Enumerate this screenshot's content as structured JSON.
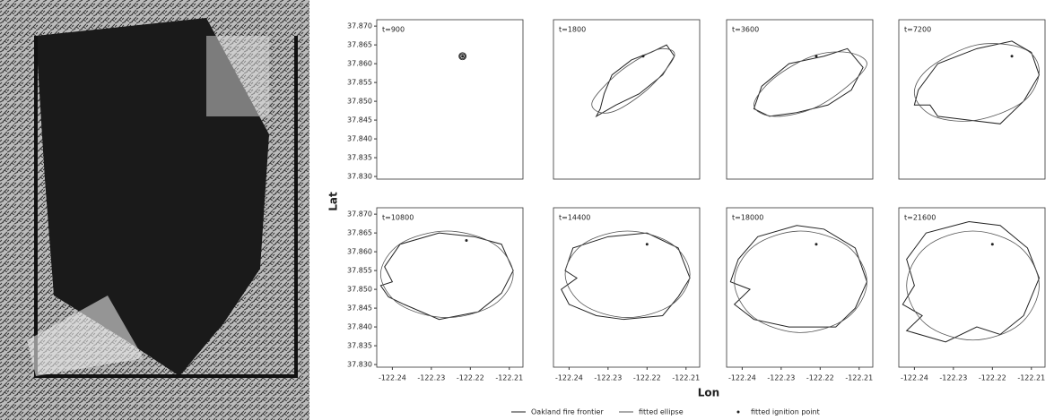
{
  "figure": {
    "xlabel": "Lon",
    "ylabel": "Lat"
  },
  "chart_data": [
    {
      "type": "line",
      "title": "t=900",
      "xlim": [
        -122.244,
        -122.2065
      ],
      "ylim": [
        37.8293,
        37.8717
      ],
      "yticks": [
        {
          "value": 37.87,
          "label": "37.870"
        },
        37.865,
        {
          "value": 37.86,
          "label": "37.860"
        },
        37.855,
        {
          "value": 37.85,
          "label": "37.850"
        },
        37.845,
        {
          "value": 37.84,
          "label": "37.840"
        },
        37.835,
        {
          "value": 37.83,
          "label": "37.830"
        }
      ],
      "series": [
        {
          "name": "Oakland fire frontier",
          "color": "#222222",
          "x": [
            -122.2213,
            -122.2217,
            -122.2223,
            -122.2227,
            -122.2224,
            -122.2217
          ],
          "y": [
            37.8621,
            37.8626,
            37.8626,
            37.8621,
            37.8614,
            37.8614
          ]
        },
        {
          "name": "fitted ellipse",
          "color": "#555555",
          "x": [
            -122.2212,
            -122.2214,
            -122.222,
            -122.2226,
            -122.2228,
            -122.2226,
            -122.222,
            -122.2214
          ],
          "y": [
            37.862,
            37.8625,
            37.8627,
            37.8625,
            37.862,
            37.8615,
            37.8613,
            37.8615
          ]
        },
        {
          "name": "fitted ignition point",
          "color": "#222222",
          "x": [
            -122.222
          ],
          "y": [
            37.862
          ]
        }
      ]
    },
    {
      "type": "line",
      "title": "t=1800",
      "xlim": [
        -122.244,
        -122.2065
      ],
      "ylim": [
        37.8293,
        37.8717
      ],
      "series": [
        {
          "color": "#222222",
          "x": [
            -122.232,
            -122.233,
            -122.228,
            -122.222,
            -122.216,
            -122.213,
            -122.215,
            -122.219,
            -122.224,
            -122.229,
            -122.231
          ],
          "y": [
            37.848,
            37.846,
            37.849,
            37.852,
            37.857,
            37.862,
            37.865,
            37.863,
            37.861,
            37.857,
            37.852
          ]
        },
        {
          "color": "#555555",
          "x": [
            -122.213,
            -122.216,
            -122.221,
            -122.228,
            -122.234,
            -122.232,
            -122.227,
            -122.219
          ],
          "y": [
            37.862,
            37.864,
            37.862,
            37.857,
            37.85,
            37.847,
            37.848,
            37.854
          ]
        },
        {
          "color": "#222222",
          "x": [
            -122.221
          ],
          "y": [
            37.862
          ]
        }
      ]
    },
    {
      "type": "line",
      "title": "t=3600",
      "xlim": [
        -122.244,
        -122.2065
      ],
      "ylim": [
        37.8293,
        37.8717
      ],
      "series": [
        {
          "color": "#222222",
          "x": [
            -122.209,
            -122.213,
            -122.219,
            -122.228,
            -122.235,
            -122.237,
            -122.233,
            -122.226,
            -122.218,
            -122.212
          ],
          "y": [
            37.859,
            37.864,
            37.862,
            37.86,
            37.854,
            37.848,
            37.846,
            37.847,
            37.849,
            37.853
          ]
        },
        {
          "color": "#555555",
          "x": [
            -122.208,
            -122.213,
            -122.222,
            -122.232,
            -122.237,
            -122.232,
            -122.222,
            -122.213
          ],
          "y": [
            37.86,
            37.863,
            37.862,
            37.856,
            37.849,
            37.846,
            37.848,
            37.854
          ]
        },
        {
          "color": "#222222",
          "x": [
            -122.221
          ],
          "y": [
            37.862
          ]
        }
      ]
    },
    {
      "type": "line",
      "title": "t=7200",
      "xlim": [
        -122.244,
        -122.2065
      ],
      "ylim": [
        37.8293,
        37.8717
      ],
      "series": [
        {
          "color": "#222222",
          "x": [
            -122.208,
            -122.21,
            -122.215,
            -122.224,
            -122.234,
            -122.239,
            -122.24,
            -122.236,
            -122.234,
            -122.226,
            -122.218,
            -122.212
          ],
          "y": [
            37.857,
            37.863,
            37.866,
            37.864,
            37.86,
            37.853,
            37.849,
            37.849,
            37.846,
            37.845,
            37.844,
            37.85
          ]
        },
        {
          "color": "#555555",
          "x": [
            -122.208,
            -122.212,
            -122.224,
            -122.236,
            -122.24,
            -122.235,
            -122.224,
            -122.212
          ],
          "y": [
            37.858,
            37.864,
            37.865,
            37.859,
            37.852,
            37.846,
            37.845,
            37.85
          ]
        },
        {
          "color": "#222222",
          "x": [
            -122.215
          ],
          "y": [
            37.862
          ]
        }
      ]
    },
    {
      "type": "line",
      "title": "t=10800",
      "xlim": [
        -122.244,
        -122.2065
      ],
      "ylim": [
        37.8293,
        37.8717
      ],
      "xticks": [
        -122.24,
        -122.23,
        -122.22,
        -122.21
      ],
      "yticks": [
        {
          "value": 37.87,
          "label": "37.870"
        },
        37.865,
        {
          "value": 37.86,
          "label": "37.860"
        },
        37.855,
        {
          "value": 37.85,
          "label": "37.850"
        },
        37.845,
        {
          "value": 37.84,
          "label": "37.840"
        },
        37.835,
        {
          "value": 37.83,
          "label": "37.830"
        }
      ],
      "series": [
        {
          "color": "#222222",
          "x": [
            -122.209,
            -122.212,
            -122.219,
            -122.228,
            -122.238,
            -122.242,
            -122.24,
            -122.243,
            -122.241,
            -122.237,
            -122.228,
            -122.218,
            -122.212
          ],
          "y": [
            37.855,
            37.862,
            37.864,
            37.865,
            37.862,
            37.856,
            37.852,
            37.851,
            37.848,
            37.846,
            37.842,
            37.844,
            37.849
          ]
        },
        {
          "color": "#555555",
          "x": [
            -122.209,
            -122.214,
            -122.226,
            -122.238,
            -122.243,
            -122.238,
            -122.226,
            -122.214
          ],
          "y": [
            37.854,
            37.8621,
            37.8655,
            37.8621,
            37.854,
            37.8459,
            37.8425,
            37.8459
          ]
        },
        {
          "color": "#222222",
          "x": [
            -122.221
          ],
          "y": [
            37.863
          ]
        }
      ]
    },
    {
      "type": "line",
      "title": "t=14400",
      "xlim": [
        -122.244,
        -122.2065
      ],
      "ylim": [
        37.8293,
        37.8717
      ],
      "xticks": [
        -122.24,
        -122.23,
        -122.22,
        -122.21
      ],
      "series": [
        {
          "color": "#222222",
          "x": [
            -122.209,
            -122.212,
            -122.22,
            -122.23,
            -122.239,
            -122.241,
            -122.238,
            -122.242,
            -122.24,
            -122.233,
            -122.226,
            -122.216,
            -122.212
          ],
          "y": [
            37.853,
            37.861,
            37.865,
            37.864,
            37.861,
            37.855,
            37.853,
            37.85,
            37.846,
            37.843,
            37.842,
            37.843,
            37.848
          ]
        },
        {
          "color": "#555555",
          "x": [
            -122.209,
            -122.2137,
            -122.225,
            -122.2363,
            -122.241,
            -122.2363,
            -122.225,
            -122.2137
          ],
          "y": [
            37.854,
            37.8621,
            37.8655,
            37.8621,
            37.854,
            37.8459,
            37.8425,
            37.8459
          ]
        },
        {
          "color": "#222222",
          "x": [
            -122.22
          ],
          "y": [
            37.862
          ]
        }
      ]
    },
    {
      "type": "line",
      "title": "t=18000",
      "xlim": [
        -122.244,
        -122.2065
      ],
      "ylim": [
        37.8293,
        37.8717
      ],
      "xticks": [
        -122.24,
        -122.23,
        -122.22,
        -122.21
      ],
      "series": [
        {
          "color": "#222222",
          "x": [
            -122.208,
            -122.211,
            -122.219,
            -122.226,
            -122.236,
            -122.241,
            -122.243,
            -122.238,
            -122.242,
            -122.237,
            -122.228,
            -122.216,
            -122.211
          ],
          "y": [
            37.852,
            37.861,
            37.866,
            37.867,
            37.864,
            37.858,
            37.852,
            37.85,
            37.846,
            37.842,
            37.84,
            37.84,
            37.845
          ]
        },
        {
          "color": "#555555",
          "x": [
            -122.208,
            -122.213,
            -122.225,
            -122.237,
            -122.242,
            -122.237,
            -122.225,
            -122.213
          ],
          "y": [
            37.852,
            37.8615,
            37.8655,
            37.8615,
            37.852,
            37.8425,
            37.8385,
            37.8425
          ]
        },
        {
          "color": "#222222",
          "x": [
            -122.221
          ],
          "y": [
            37.862
          ]
        }
      ]
    },
    {
      "type": "line",
      "title": "t=21600",
      "xlim": [
        -122.244,
        -122.2065
      ],
      "ylim": [
        37.8293,
        37.8717
      ],
      "xticks": [
        -122.24,
        -122.23,
        -122.22,
        -122.21
      ],
      "series": [
        {
          "color": "#222222",
          "x": [
            -122.208,
            -122.211,
            -122.218,
            -122.226,
            -122.237,
            -122.242,
            -122.24,
            -122.243,
            -122.238,
            -122.242,
            -122.232,
            -122.224,
            -122.218,
            -122.212
          ],
          "y": [
            37.853,
            37.861,
            37.867,
            37.868,
            37.865,
            37.858,
            37.851,
            37.846,
            37.843,
            37.839,
            37.836,
            37.84,
            37.838,
            37.843
          ]
        },
        {
          "color": "#555555",
          "x": [
            -122.208,
            -122.213,
            -122.225,
            -122.237,
            -122.242,
            -122.237,
            -122.225,
            -122.213
          ],
          "y": [
            37.851,
            37.8613,
            37.8655,
            37.8613,
            37.851,
            37.8407,
            37.8365,
            37.8407
          ]
        },
        {
          "color": "#222222",
          "x": [
            -122.22
          ],
          "y": [
            37.862
          ]
        }
      ]
    }
  ]
}
